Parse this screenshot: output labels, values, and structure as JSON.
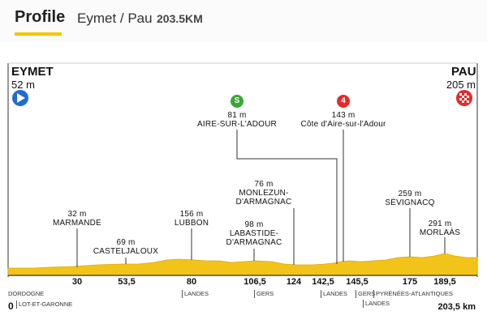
{
  "header": {
    "tab_label": "Profile",
    "route": "Eymet / Pau",
    "distance": "203.5KM"
  },
  "start": {
    "name": "EYMET",
    "elevation": "52 m",
    "icon": "play-icon"
  },
  "finish": {
    "name": "PAU",
    "elevation": "205 m",
    "icon": "checkered-flag-icon"
  },
  "points": [
    {
      "km": "30",
      "name": "MARMANDE",
      "elevation": "32 m"
    },
    {
      "km": "53,5",
      "name": "CASTELJALOUX",
      "elevation": "69 m"
    },
    {
      "km": "80",
      "name": "LUBBON",
      "elevation": "156 m"
    },
    {
      "km": "106,5",
      "name": "LABASTIDE-D'ARMAGNAC",
      "name_lines": [
        "LABASTIDE-",
        "D'ARMAGNAC"
      ],
      "elevation": "98 m"
    },
    {
      "km": "124",
      "name": "MONLEZUN-D'ARMAGNAC",
      "name_lines": [
        "MONLEZUN-",
        "D'ARMAGNAC"
      ],
      "elevation": "76 m"
    },
    {
      "km": "142,5",
      "name": "AIRE-SUR-L'ADOUR",
      "elevation": "81 m",
      "badge": "S",
      "badge_color": "#3aa636"
    },
    {
      "km": "145,5",
      "name": "Côte d'Aire-sur-l'Adour",
      "elevation": "143 m",
      "badge": "4",
      "badge_color": "#e32b2b"
    },
    {
      "km": "175",
      "name": "SÉVIGNACQ",
      "elevation": "259 m"
    },
    {
      "km": "189,5",
      "name": "MORLAÀS",
      "elevation": "291 m"
    }
  ],
  "axis": {
    "start_km": "0",
    "end_km": "203,5 km"
  },
  "regions": [
    {
      "label": "DORDOGNE"
    },
    {
      "label": "LOT-ET-GARONNE"
    },
    {
      "label": "LANDES"
    },
    {
      "label": "GERS"
    },
    {
      "label": "LANDES"
    },
    {
      "label": "GERS"
    },
    {
      "label": "PYRÉNÉES-ATLANTIQUES"
    },
    {
      "label": "LANDES"
    }
  ],
  "colors": {
    "terrain": "#f2c41a",
    "terrain_dark": "#d8a90c",
    "frame": "#333333",
    "accent": "#f5c600"
  }
}
